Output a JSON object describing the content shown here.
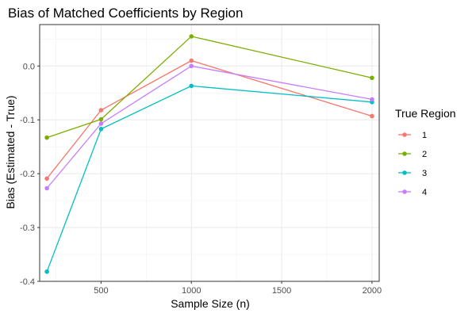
{
  "chart_data": {
    "type": "line",
    "title": "Bias of Matched Coefficients by Region",
    "xlabel": "Sample Size (n)",
    "ylabel": "Bias (Estimated - True)",
    "xlim": [
      160,
      2040
    ],
    "ylim": [
      -0.4,
      0.077
    ],
    "x_ticks": [
      500,
      1000,
      1500,
      2000
    ],
    "x_tick_labels": [
      "500",
      "1000",
      "1500",
      "2000"
    ],
    "y_ticks": [
      -0.4,
      -0.3,
      -0.2,
      -0.1,
      0.0
    ],
    "y_tick_labels": [
      "-0.4",
      "-0.3",
      "-0.2",
      "-0.1",
      "0.0"
    ],
    "grid": true,
    "legend": {
      "title": "True Region",
      "position": "right"
    },
    "x": [
      200,
      500,
      1000,
      2000
    ],
    "series": [
      {
        "name": "1",
        "color": "#F8766D",
        "values": [
          -0.209,
          -0.082,
          0.01,
          -0.093
        ]
      },
      {
        "name": "2",
        "color": "#7CAE00",
        "values": [
          -0.133,
          -0.099,
          0.055,
          -0.022
        ]
      },
      {
        "name": "3",
        "color": "#00BFC4",
        "values": [
          -0.382,
          -0.117,
          -0.037,
          -0.067
        ]
      },
      {
        "name": "4",
        "color": "#C77CFF",
        "values": [
          -0.227,
          -0.107,
          0.0,
          -0.062
        ]
      }
    ]
  }
}
